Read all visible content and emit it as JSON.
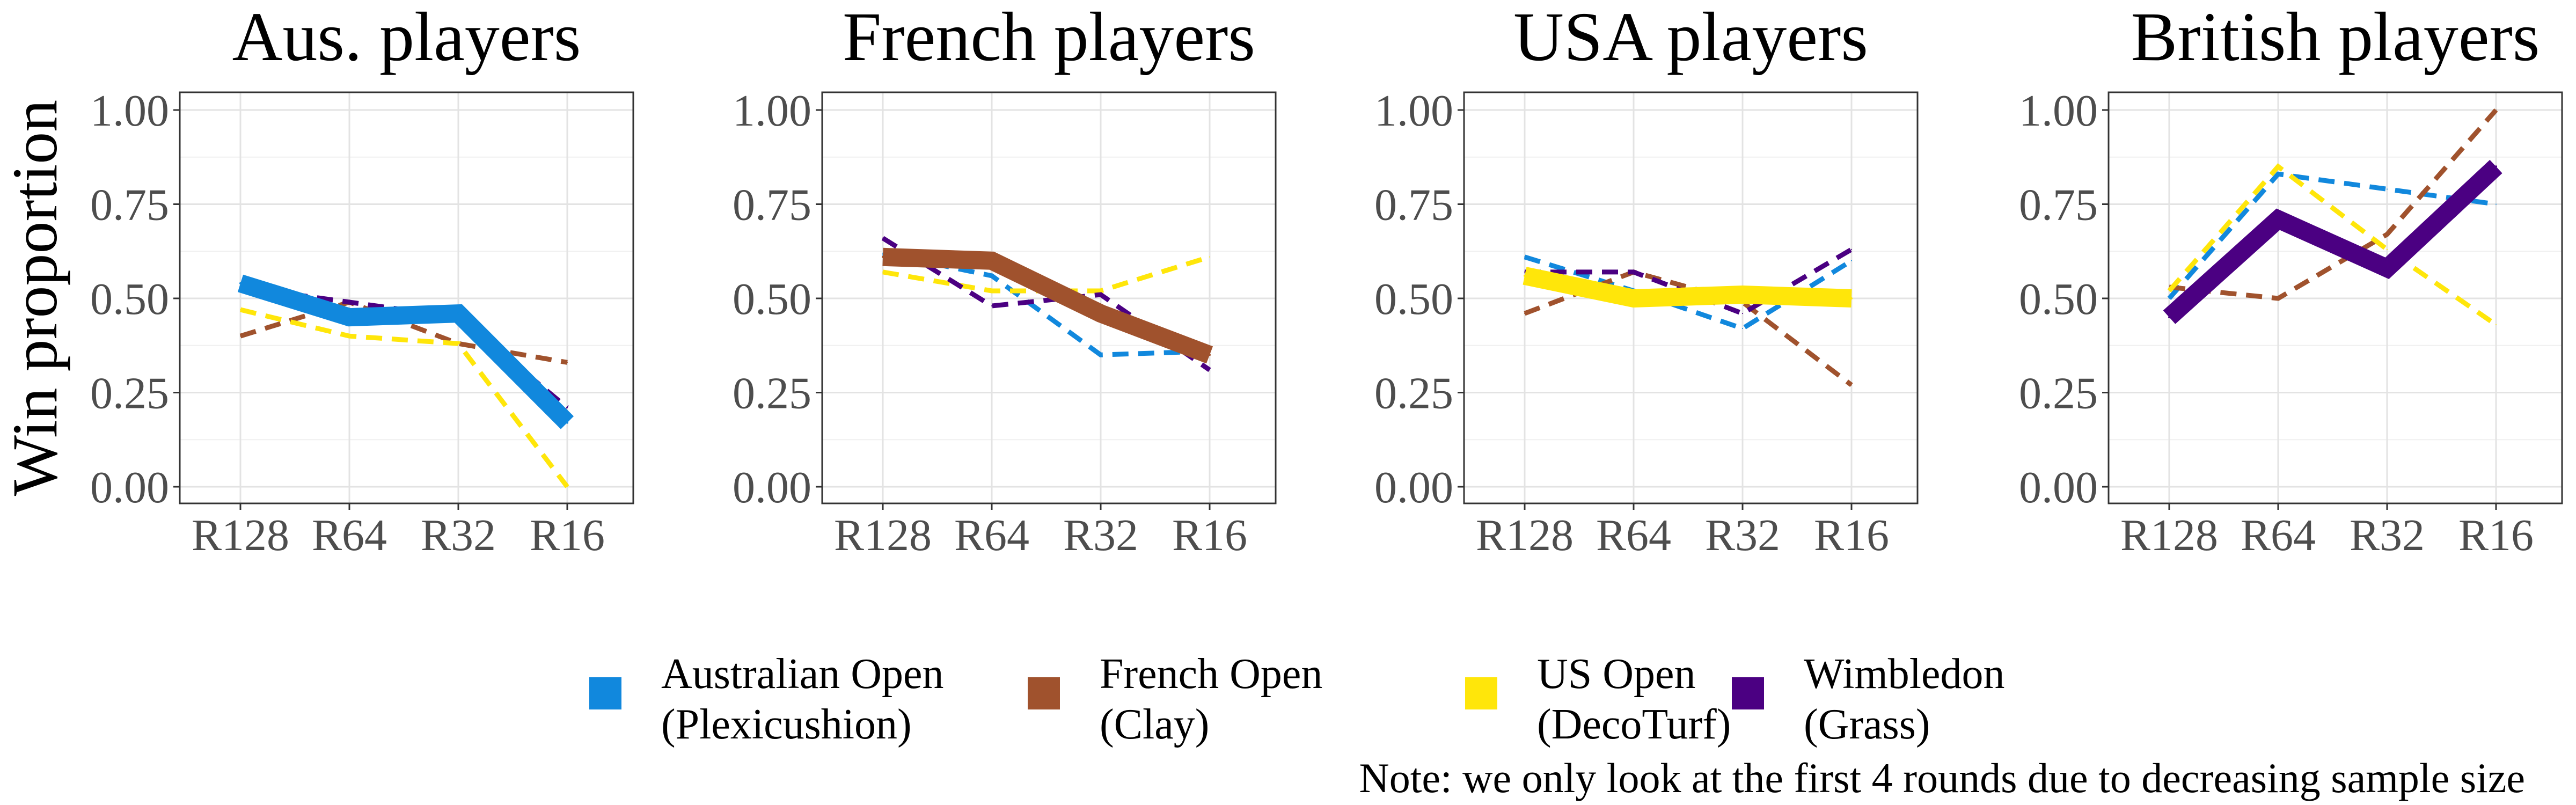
{
  "chart_data": {
    "type": "line",
    "ylabel": "Win proportion",
    "categories": [
      "R128",
      "R64",
      "R32",
      "R16"
    ],
    "ylim": [
      0,
      1
    ],
    "yticks": [
      "0.00",
      "0.25",
      "0.50",
      "0.75",
      "1.00"
    ],
    "grid": true,
    "legend_position": "bottom",
    "note": "Note: we only look at the first 4 rounds due to decreasing sample size",
    "series_styles": [
      {
        "key": "ao",
        "line1": "Australian Open",
        "line2": "(Plexicushion)",
        "color": "#1188dd"
      },
      {
        "key": "fo",
        "line1": "French Open",
        "line2": "(Clay)",
        "color": "#a0522d"
      },
      {
        "key": "uo",
        "line1": "US Open",
        "line2": "(DecoTurf)",
        "color": "#ffe60a"
      },
      {
        "key": "wb",
        "line1": "Wimbledon",
        "line2": "(Grass)",
        "color": "#4b0082"
      }
    ],
    "panels": [
      {
        "title": "Aus. players",
        "home": "ao",
        "series": {
          "ao": [
            0.54,
            0.45,
            0.46,
            0.17
          ],
          "fo": [
            0.4,
            0.49,
            0.38,
            0.33
          ],
          "uo": [
            0.47,
            0.4,
            0.38,
            0.0
          ],
          "wb": [
            0.53,
            0.49,
            0.45,
            0.21
          ]
        }
      },
      {
        "title": "French players",
        "home": "fo",
        "series": {
          "ao": [
            0.62,
            0.56,
            0.35,
            0.36
          ],
          "fo": [
            0.61,
            0.6,
            0.46,
            0.35
          ],
          "uo": [
            0.57,
            0.52,
            0.52,
            0.61
          ],
          "wb": [
            0.66,
            0.48,
            0.51,
            0.31
          ]
        }
      },
      {
        "title": "USA players",
        "home": "uo",
        "series": {
          "ao": [
            0.61,
            0.52,
            0.42,
            0.6
          ],
          "fo": [
            0.46,
            0.57,
            0.49,
            0.27
          ],
          "uo": [
            0.56,
            0.5,
            0.51,
            0.5
          ],
          "wb": [
            0.57,
            0.57,
            0.46,
            0.63
          ]
        }
      },
      {
        "title": "British players",
        "home": "wb",
        "series": {
          "ao": [
            0.5,
            0.83,
            0.79,
            0.75
          ],
          "fo": [
            0.53,
            0.5,
            0.67,
            1.0
          ],
          "uo": [
            0.52,
            0.85,
            0.63,
            0.43
          ],
          "wb": [
            0.45,
            0.71,
            0.58,
            0.85
          ]
        }
      }
    ]
  }
}
